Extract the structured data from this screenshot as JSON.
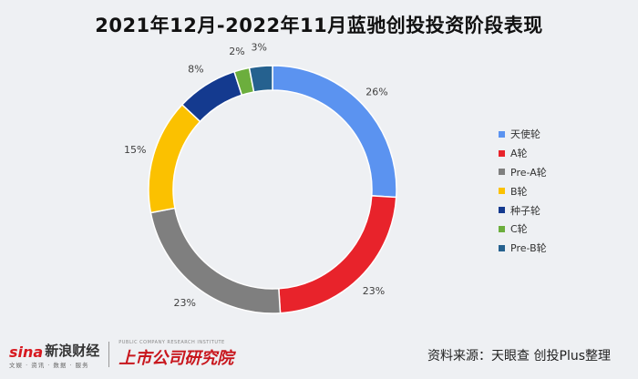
{
  "title": "2021年12月-2022年11月蓝驰创投投资阶段表现",
  "chart_data": {
    "type": "pie",
    "variant": "donut",
    "title": "2021年12月-2022年11月蓝驰创投投资阶段表现",
    "legend_position": "right",
    "categories": [
      "天使轮",
      "A轮",
      "Pre-A轮",
      "B轮",
      "种子轮",
      "C轮",
      "Pre-B轮"
    ],
    "values": [
      26,
      23,
      23,
      15,
      8,
      2,
      3
    ],
    "labels": [
      "26%",
      "23%",
      "23%",
      "15%",
      "8%",
      "2%",
      "3%"
    ],
    "colors": [
      "#5b93f0",
      "#e8232b",
      "#7f7f7f",
      "#fbc100",
      "#143a8f",
      "#6cae3d",
      "#25618f"
    ]
  },
  "footer": {
    "sina_logo": "sina",
    "sina_name": "新浪财经",
    "sina_sub": "文娱 · 资讯 · 数据 · 服务",
    "inst_name": "上市公司研究院",
    "inst_sub": "PUBLIC COMPANY RESEARCH INSTITUTE",
    "source": "资料来源：天眼查 创投Plus整理"
  }
}
